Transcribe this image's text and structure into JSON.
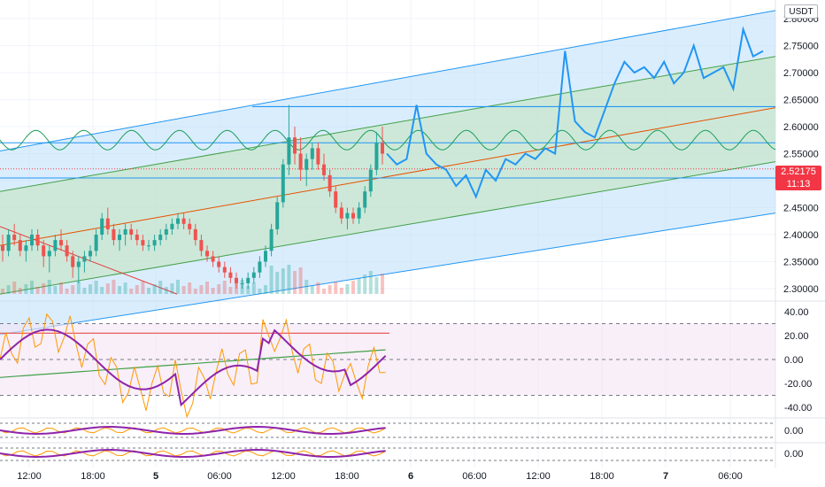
{
  "currency": "USDT",
  "price_axis": {
    "labels": [
      "2.80000",
      "2.75000",
      "2.70000",
      "2.65000",
      "2.60000",
      "2.55000",
      "2.50000",
      "2.45000",
      "2.40000",
      "2.35000",
      "2.30000"
    ],
    "values": [
      2.8,
      2.75,
      2.7,
      2.65,
      2.6,
      2.55,
      2.5,
      2.45,
      2.4,
      2.35,
      2.3
    ]
  },
  "current_price": {
    "value": "2.52175",
    "countdown": "11:13",
    "color": "#f23645"
  },
  "oscillator_axis": {
    "labels": [
      "40.00",
      "20.00",
      "0.00",
      "-20.00",
      "-40.00"
    ],
    "values": [
      40,
      20,
      0,
      -20,
      -40
    ]
  },
  "mini_panels": [
    {
      "label": "0.00"
    },
    {
      "label": "0.00"
    }
  ],
  "time_axis": {
    "labels": [
      "12:00",
      "18:00",
      "5",
      "06:00",
      "12:00",
      "18:00",
      "6",
      "06:00",
      "12:00",
      "18:00",
      "7",
      "06:00"
    ],
    "bold": [
      false,
      false,
      true,
      false,
      false,
      false,
      true,
      false,
      false,
      false,
      true,
      false
    ]
  },
  "colors": {
    "up": "#26a69a",
    "down": "#ef5350",
    "channel_outer": "#2196f3",
    "channel_fill": "#bbdefb",
    "channel_inner_fill": "#c8e6c9",
    "channel_mid": "#e65100",
    "projection": "#2196f3",
    "sine": "#1b9e5a",
    "osc_purple": "#8e24aa",
    "osc_orange": "#ff9800",
    "osc_bg": "#f3e5f5"
  },
  "chart_data": {
    "type": "candlestick",
    "candles_ohlc": [
      [
        2.38,
        2.4,
        2.35,
        2.37
      ],
      [
        2.37,
        2.41,
        2.36,
        2.4
      ],
      [
        2.4,
        2.42,
        2.38,
        2.39
      ],
      [
        2.39,
        2.4,
        2.36,
        2.37
      ],
      [
        2.37,
        2.39,
        2.35,
        2.38
      ],
      [
        2.38,
        2.41,
        2.37,
        2.4
      ],
      [
        2.4,
        2.41,
        2.37,
        2.38
      ],
      [
        2.38,
        2.39,
        2.34,
        2.36
      ],
      [
        2.36,
        2.38,
        2.33,
        2.37
      ],
      [
        2.37,
        2.4,
        2.36,
        2.39
      ],
      [
        2.39,
        2.41,
        2.37,
        2.38
      ],
      [
        2.38,
        2.39,
        2.35,
        2.36
      ],
      [
        2.36,
        2.37,
        2.32,
        2.34
      ],
      [
        2.34,
        2.36,
        2.31,
        2.35
      ],
      [
        2.35,
        2.37,
        2.33,
        2.36
      ],
      [
        2.36,
        2.38,
        2.35,
        2.37
      ],
      [
        2.37,
        2.41,
        2.36,
        2.4
      ],
      [
        2.4,
        2.44,
        2.39,
        2.43
      ],
      [
        2.43,
        2.45,
        2.4,
        2.41
      ],
      [
        2.41,
        2.42,
        2.38,
        2.39
      ],
      [
        2.39,
        2.41,
        2.37,
        2.4
      ],
      [
        2.4,
        2.42,
        2.38,
        2.41
      ],
      [
        2.41,
        2.42,
        2.39,
        2.4
      ],
      [
        2.4,
        2.41,
        2.38,
        2.39
      ],
      [
        2.39,
        2.4,
        2.37,
        2.38
      ],
      [
        2.38,
        2.39,
        2.37,
        2.38
      ],
      [
        2.38,
        2.4,
        2.37,
        2.39
      ],
      [
        2.39,
        2.41,
        2.38,
        2.4
      ],
      [
        2.4,
        2.42,
        2.39,
        2.41
      ],
      [
        2.41,
        2.43,
        2.4,
        2.42
      ],
      [
        2.42,
        2.44,
        2.41,
        2.43
      ],
      [
        2.43,
        2.44,
        2.41,
        2.42
      ],
      [
        2.42,
        2.43,
        2.4,
        2.41
      ],
      [
        2.41,
        2.42,
        2.38,
        2.39
      ],
      [
        2.39,
        2.4,
        2.36,
        2.37
      ],
      [
        2.37,
        2.38,
        2.35,
        2.36
      ],
      [
        2.36,
        2.37,
        2.34,
        2.35
      ],
      [
        2.35,
        2.36,
        2.33,
        2.34
      ],
      [
        2.34,
        2.35,
        2.32,
        2.33
      ],
      [
        2.33,
        2.34,
        2.31,
        2.32
      ],
      [
        2.32,
        2.33,
        2.3,
        2.31
      ],
      [
        2.31,
        2.32,
        2.3,
        2.31
      ],
      [
        2.31,
        2.33,
        2.3,
        2.32
      ],
      [
        2.32,
        2.34,
        2.31,
        2.33
      ],
      [
        2.33,
        2.36,
        2.32,
        2.35
      ],
      [
        2.35,
        2.38,
        2.34,
        2.37
      ],
      [
        2.37,
        2.42,
        2.36,
        2.41
      ],
      [
        2.41,
        2.47,
        2.4,
        2.46
      ],
      [
        2.46,
        2.54,
        2.45,
        2.53
      ],
      [
        2.53,
        2.64,
        2.51,
        2.58
      ],
      [
        2.58,
        2.6,
        2.53,
        2.55
      ],
      [
        2.55,
        2.58,
        2.5,
        2.52
      ],
      [
        2.52,
        2.55,
        2.49,
        2.54
      ],
      [
        2.54,
        2.57,
        2.52,
        2.56
      ],
      [
        2.56,
        2.57,
        2.52,
        2.53
      ],
      [
        2.53,
        2.55,
        2.5,
        2.51
      ],
      [
        2.51,
        2.52,
        2.47,
        2.48
      ],
      [
        2.48,
        2.49,
        2.44,
        2.45
      ],
      [
        2.45,
        2.46,
        2.42,
        2.43
      ],
      [
        2.43,
        2.45,
        2.41,
        2.44
      ],
      [
        2.44,
        2.45,
        2.42,
        2.43
      ],
      [
        2.43,
        2.46,
        2.42,
        2.45
      ],
      [
        2.45,
        2.49,
        2.44,
        2.48
      ],
      [
        2.48,
        2.53,
        2.47,
        2.52
      ],
      [
        2.52,
        2.59,
        2.51,
        2.57
      ],
      [
        2.57,
        2.6,
        2.53,
        2.55
      ]
    ],
    "projection_path": [
      2.55,
      2.53,
      2.54,
      2.64,
      2.55,
      2.53,
      2.52,
      2.49,
      2.51,
      2.47,
      2.52,
      2.5,
      2.54,
      2.53,
      2.55,
      2.54,
      2.56,
      2.55,
      2.74,
      2.61,
      2.59,
      2.58,
      2.63,
      2.68,
      2.72,
      2.7,
      2.71,
      2.69,
      2.72,
      2.68,
      2.7,
      2.75,
      2.69,
      2.7,
      2.71,
      2.67,
      2.78,
      2.73,
      2.74
    ]
  }
}
